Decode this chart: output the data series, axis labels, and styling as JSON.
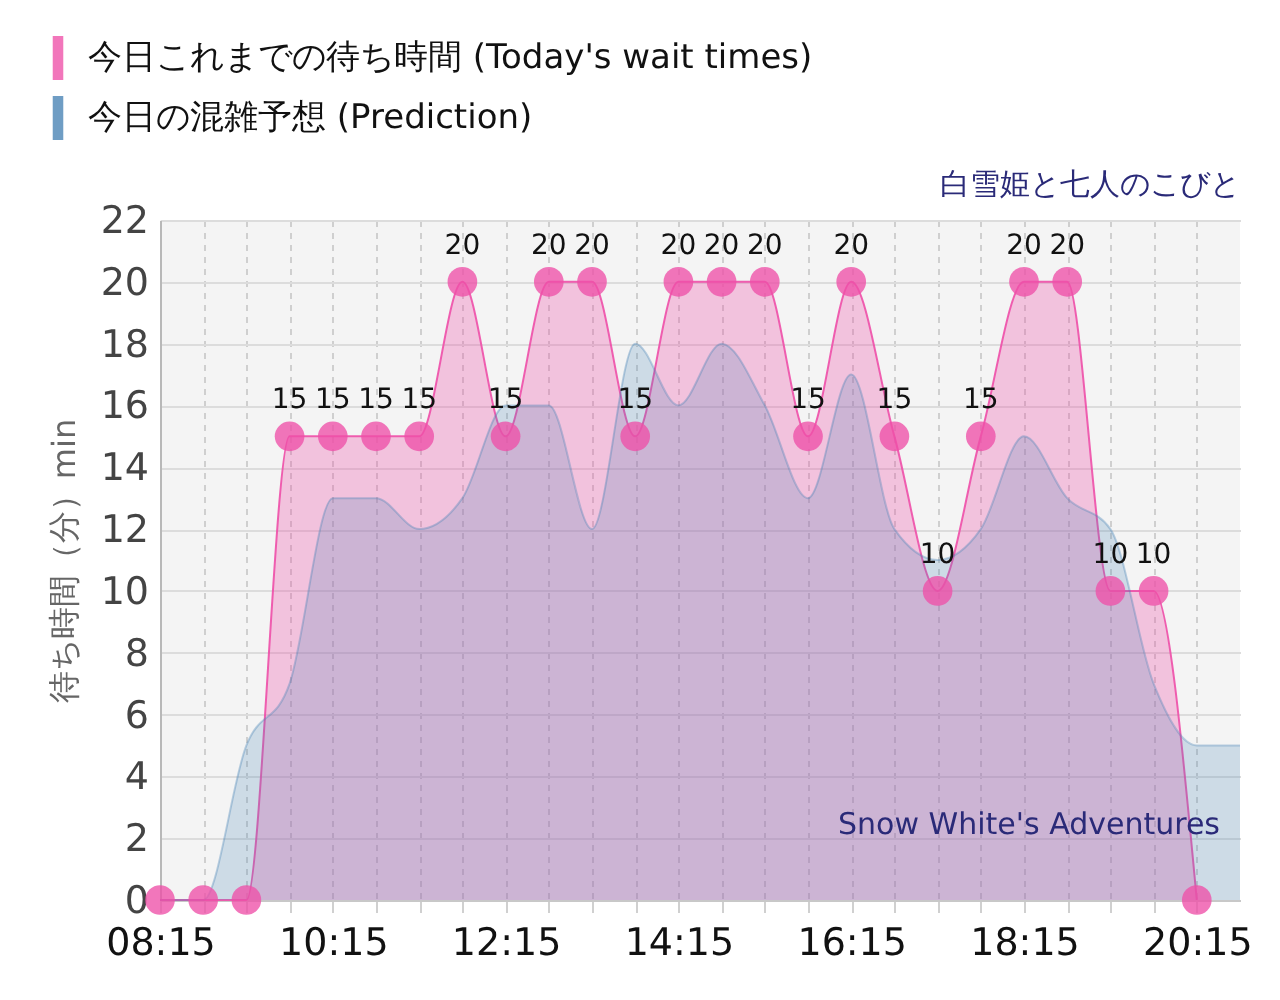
{
  "chart_data": {
    "type": "area",
    "title": "白雪姫と七人のこびと",
    "ylabel": "待ち時間（分）min",
    "xlim": [
      8.25,
      20.75
    ],
    "xticks": [
      {
        "value": 8.25,
        "label": "08:15"
      },
      {
        "value": 8.75,
        "label": null
      },
      {
        "value": 9.25,
        "label": null
      },
      {
        "value": 9.75,
        "label": null
      },
      {
        "value": 10.25,
        "label": "10:15"
      },
      {
        "value": 10.75,
        "label": null
      },
      {
        "value": 11.25,
        "label": null
      },
      {
        "value": 11.75,
        "label": null
      },
      {
        "value": 12.25,
        "label": "12:15"
      },
      {
        "value": 12.75,
        "label": null
      },
      {
        "value": 13.25,
        "label": null
      },
      {
        "value": 13.75,
        "label": null
      },
      {
        "value": 14.25,
        "label": "14:15"
      },
      {
        "value": 14.75,
        "label": null
      },
      {
        "value": 15.25,
        "label": null
      },
      {
        "value": 15.75,
        "label": null
      },
      {
        "value": 16.25,
        "label": "16:15"
      },
      {
        "value": 16.75,
        "label": null
      },
      {
        "value": 17.25,
        "label": null
      },
      {
        "value": 17.75,
        "label": null
      },
      {
        "value": 18.25,
        "label": "18:15"
      },
      {
        "value": 18.75,
        "label": null
      },
      {
        "value": 19.25,
        "label": null
      },
      {
        "value": 19.75,
        "label": null
      },
      {
        "value": 20.25,
        "label": "20:15"
      }
    ],
    "ylim": [
      0,
      22
    ],
    "yticks": [
      0,
      2,
      4,
      6,
      8,
      10,
      12,
      14,
      16,
      18,
      20,
      22
    ],
    "grid": true,
    "legend": "top left",
    "series": [
      {
        "name": "今日これまでの待ち時間 (Today's wait times)",
        "marker": "circle",
        "color": "#ee4fa8",
        "x": [
          8.25,
          8.75,
          9.25,
          9.75,
          10.25,
          10.75,
          11.25,
          11.75,
          12.25,
          12.75,
          13.25,
          13.75,
          14.25,
          14.75,
          15.25,
          15.75,
          16.25,
          16.75,
          17.25,
          17.75,
          18.25,
          18.75,
          19.25,
          19.75,
          20.25
        ],
        "values": [
          0,
          0,
          0,
          15,
          15,
          15,
          15,
          20,
          15,
          20,
          20,
          15,
          20,
          20,
          20,
          15,
          20,
          15,
          10,
          15,
          20,
          20,
          10,
          10,
          0
        ],
        "value_labels": [
          null,
          null,
          null,
          "15",
          "15",
          "15",
          "15",
          "20",
          "15",
          "20",
          "20",
          "15",
          "20",
          "20",
          "20",
          "15",
          "20",
          "15",
          "10",
          "15",
          "20",
          "20",
          "10",
          "10",
          null
        ]
      },
      {
        "name": "今日の混雑予想 (Prediction)",
        "color": "#4682b4",
        "x": [
          8.25,
          8.75,
          9.25,
          9.75,
          10.25,
          10.75,
          11.25,
          11.75,
          12.25,
          12.75,
          13.25,
          13.75,
          14.25,
          14.75,
          15.25,
          15.75,
          16.25,
          16.75,
          17.25,
          17.75,
          18.25,
          18.75,
          19.25,
          19.75,
          20.25,
          20.75
        ],
        "values": [
          0,
          0,
          5,
          7,
          13,
          13,
          12,
          13,
          16,
          16,
          12,
          18,
          16,
          18,
          16,
          13,
          17,
          12,
          11,
          12,
          15,
          13,
          12,
          7,
          5,
          5
        ]
      }
    ],
    "annotations": [
      "Snow White's Adventures"
    ]
  }
}
